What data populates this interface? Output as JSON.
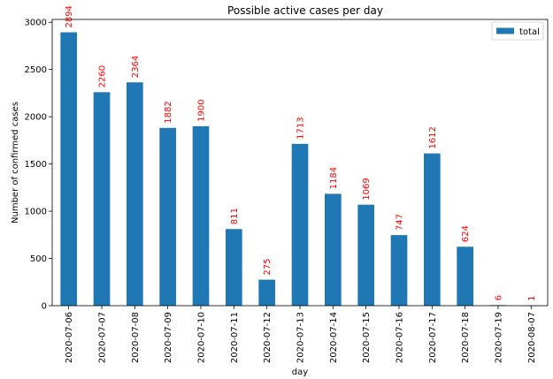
{
  "chart_data": {
    "type": "bar",
    "title": "Possible active cases per day",
    "xlabel": "day",
    "ylabel": "Number of confirmed cases",
    "categories": [
      "2020-07-06",
      "2020-07-07",
      "2020-07-08",
      "2020-07-09",
      "2020-07-10",
      "2020-07-11",
      "2020-07-12",
      "2020-07-13",
      "2020-07-14",
      "2020-07-15",
      "2020-07-16",
      "2020-07-17",
      "2020-07-18",
      "2020-07-19",
      "2020-08-07"
    ],
    "series": [
      {
        "name": "total",
        "values": [
          2894,
          2260,
          2364,
          1882,
          1900,
          811,
          275,
          1713,
          1184,
          1069,
          747,
          1612,
          624,
          6,
          1
        ]
      }
    ],
    "data_labels": [
      "2894",
      "2260",
      "2364",
      "1882",
      "1900",
      "811",
      "275",
      "1713",
      "1184",
      "1069",
      "747",
      "1612",
      "624",
      "6",
      "1"
    ],
    "ylim": [
      0,
      3030
    ],
    "yticks": [
      0,
      500,
      1000,
      1500,
      2000,
      2500,
      3000
    ],
    "ytick_labels": [
      "0",
      "500",
      "1000",
      "1500",
      "2000",
      "2500",
      "3000"
    ],
    "grid": false,
    "legend": {
      "position": "upper right",
      "entries": [
        "total"
      ]
    },
    "colors": {
      "bar": "#1f77b4",
      "data_label": "#ff0000",
      "axis": "#000000",
      "legend_border": "#cccccc"
    }
  }
}
